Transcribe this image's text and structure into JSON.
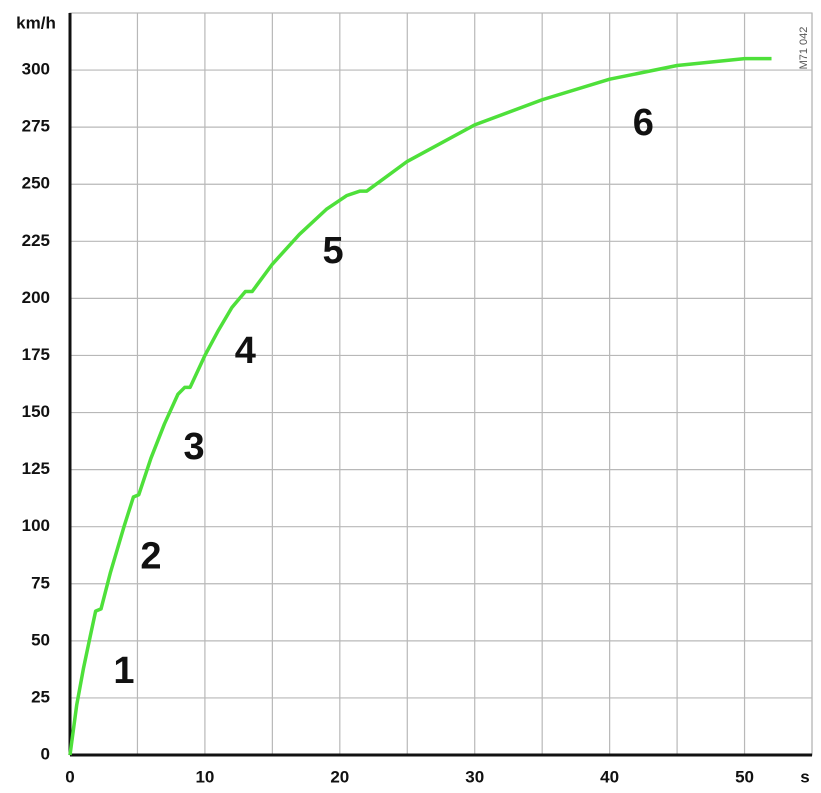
{
  "chart_data": {
    "type": "line",
    "y_label": "km/h",
    "x_label": "s",
    "code": "M71 042",
    "x": [
      0,
      0.5,
      1,
      1.5,
      1.9,
      2.3,
      3,
      4,
      4.7,
      5.1,
      6,
      7,
      8,
      8.5,
      8.9,
      10,
      11,
      12,
      13,
      13.5,
      15,
      17,
      19,
      20.5,
      21.5,
      22,
      25,
      30,
      35,
      40,
      45,
      50,
      52
    ],
    "values": [
      0,
      22,
      38,
      52,
      63,
      64,
      80,
      100,
      113,
      114,
      130,
      145,
      158,
      161,
      161,
      175,
      186,
      196,
      203,
      203,
      215,
      228,
      239,
      245,
      247,
      247,
      260,
      276,
      287,
      296,
      302,
      305,
      305
    ],
    "color": "#4ee03a",
    "xlim": [
      0,
      55
    ],
    "ylim": [
      0,
      325
    ],
    "xticks": [
      0,
      10,
      20,
      30,
      40,
      50
    ],
    "x_minor_ticks": [
      5,
      15,
      25,
      35,
      45,
      55
    ],
    "yticks": [
      0,
      25,
      50,
      75,
      100,
      125,
      150,
      175,
      200,
      225,
      250,
      275,
      300
    ],
    "grid": true,
    "annotations": [
      {
        "text": "1",
        "x": 4,
        "y": 36
      },
      {
        "text": "2",
        "x": 6,
        "y": 86
      },
      {
        "text": "3",
        "x": 9.2,
        "y": 134
      },
      {
        "text": "4",
        "x": 13,
        "y": 176
      },
      {
        "text": "5",
        "x": 19.5,
        "y": 220
      },
      {
        "text": "6",
        "x": 42.5,
        "y": 276
      }
    ]
  }
}
